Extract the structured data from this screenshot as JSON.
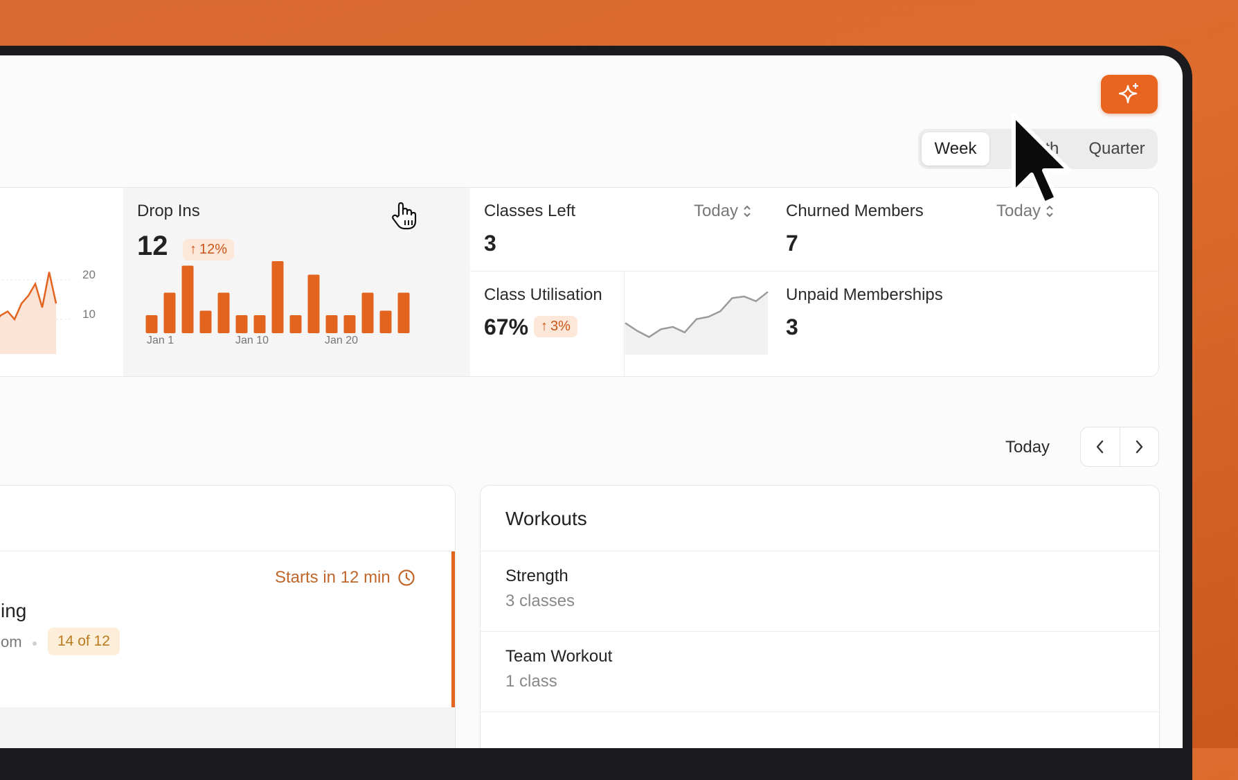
{
  "toolbar": {
    "ai_icon": "sparkle-icon",
    "periods": [
      "Week",
      "Month",
      "Quarter"
    ],
    "selected_period": "Week"
  },
  "stats": {
    "drop_ins": {
      "title": "Drop Ins",
      "value": "12",
      "change": "12%",
      "chart_data": {
        "type": "bar",
        "x_ticks": [
          "Jan 1",
          "Jan 10",
          "Jan 20"
        ],
        "values": [
          4,
          9,
          15,
          5,
          9,
          4,
          4,
          16,
          4,
          13,
          4,
          4,
          9,
          5,
          9
        ]
      }
    },
    "left_chart": {
      "y_ticks": [
        "20",
        "10"
      ],
      "chart_data": {
        "type": "area",
        "values": [
          9,
          11,
          12,
          10,
          14,
          16,
          19,
          13,
          22,
          14
        ]
      }
    },
    "classes_left": {
      "title": "Classes Left",
      "value": "3",
      "range": "Today"
    },
    "churned_members": {
      "title": "Churned Members",
      "value": "7",
      "range": "Today"
    },
    "class_utilisation": {
      "title": "Class Utilisation",
      "value": "67%",
      "change": "3%",
      "chart_data": {
        "type": "line",
        "values": [
          30,
          20,
          12,
          22,
          25,
          18,
          35,
          38,
          45,
          62,
          64,
          58,
          70
        ]
      }
    },
    "unpaid_memberships": {
      "title": "Unpaid Memberships",
      "value": "3"
    }
  },
  "schedule": {
    "today_label": "Today",
    "prev_icon": "chevron-left-icon",
    "next_icon": "chevron-right-icon"
  },
  "class_card": {
    "starts_in": "Starts in 12 min",
    "name_fragment": "ing",
    "room_fragment": "om",
    "capacity": "14 of 12"
  },
  "workouts": {
    "title": "Workouts",
    "items": [
      {
        "name": "Strength",
        "count": "3 classes"
      },
      {
        "name": "Team Workout",
        "count": "1 class"
      }
    ]
  }
}
